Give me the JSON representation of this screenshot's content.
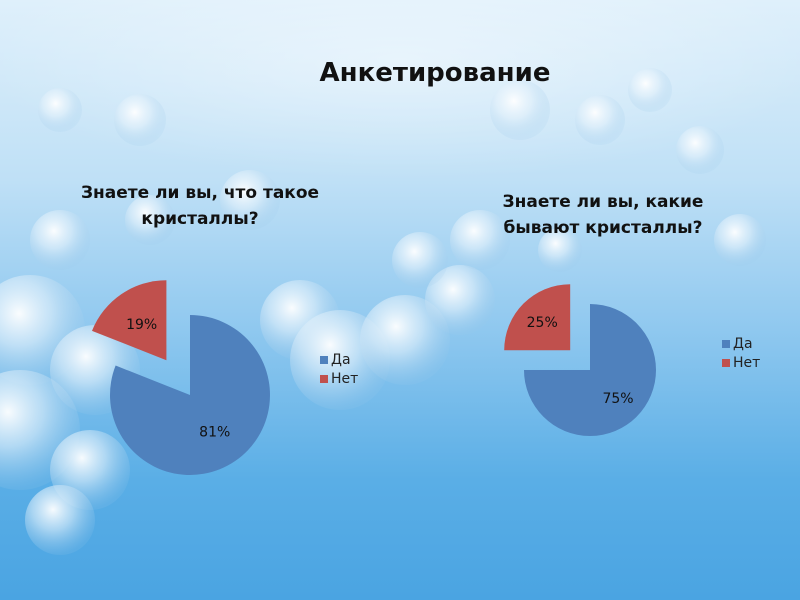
{
  "slide": {
    "title": "Анкетирование"
  },
  "colors": {
    "yes": "#4f81bd",
    "no": "#c0504d"
  },
  "chart_data": [
    {
      "type": "pie",
      "title": "Знаете ли вы, что такое кристаллы?",
      "categories": [
        "Да",
        "Нет"
      ],
      "values": [
        81,
        19
      ],
      "labels": [
        "81%",
        "19%"
      ],
      "exploded": [
        false,
        true
      ],
      "legend": "right"
    },
    {
      "type": "pie",
      "title": "Знаете ли вы, какие бывают кристаллы?",
      "categories": [
        "Да",
        "Нет"
      ],
      "values": [
        75,
        25
      ],
      "labels": [
        "75%",
        "25%"
      ],
      "exploded": [
        false,
        true
      ],
      "legend": "right"
    }
  ]
}
